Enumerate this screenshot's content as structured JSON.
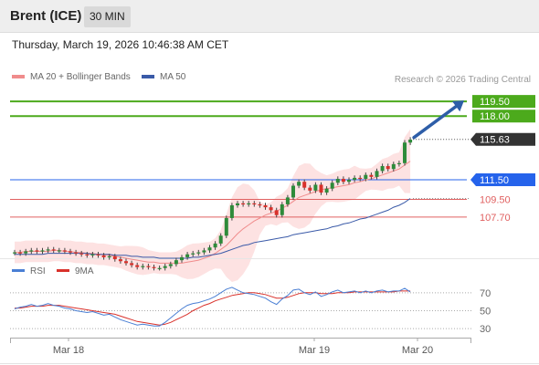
{
  "header": {
    "instrument": "Brent (ICE)",
    "timeframe": "30 MIN"
  },
  "timestamp": "Thursday, March 19, 2026 10:46:38 AM CET",
  "copyright": "Research © 2026 Trading Central",
  "colors": {
    "bullish": "#2e8b3a",
    "bearish": "#d9312b",
    "ma20": "#f08c8c",
    "band_fill": "#fde2e2",
    "ma50": "#3a5aa8",
    "target_green": "#4caa1c",
    "pivot_blue": "#2563eb",
    "support_red": "#e06060",
    "last_price_bg": "#333333",
    "arrow": "#2e5ea8",
    "rsi": "#4a7fd4",
    "rsi_ma": "#d9312b"
  },
  "chart_data": [
    {
      "type": "candlestick",
      "title": "",
      "legend": [
        {
          "name": "MA 20 + Bollinger Bands",
          "color": "#f08c8c"
        },
        {
          "name": "MA 50",
          "color": "#3a5aa8"
        }
      ],
      "x_tick_labels": [
        "Mar 18",
        "Mar 19",
        "Mar 20"
      ],
      "ylim": [
        103.5,
        121
      ],
      "last_price": "115.63",
      "levels": [
        {
          "label": "119.50",
          "value": 119.5,
          "kind": "target"
        },
        {
          "label": "118.00",
          "value": 118.0,
          "kind": "target"
        },
        {
          "label": "111.50",
          "value": 111.5,
          "kind": "pivot"
        },
        {
          "label": "109.50",
          "value": 109.5,
          "kind": "support"
        },
        {
          "label": "107.70",
          "value": 107.7,
          "kind": "support"
        }
      ],
      "close": [
        104.1,
        104.0,
        104.2,
        104.3,
        104.2,
        104.3,
        104.4,
        104.3,
        104.3,
        104.2,
        104.1,
        104.0,
        103.9,
        103.8,
        103.9,
        103.8,
        103.6,
        103.7,
        103.4,
        103.2,
        103.0,
        102.8,
        102.6,
        102.7,
        102.6,
        102.5,
        102.5,
        102.7,
        102.9,
        103.3,
        103.6,
        103.9,
        104.0,
        104.1,
        104.3,
        104.6,
        105.0,
        105.8,
        107.6,
        108.9,
        109.1,
        109.0,
        109.1,
        109.0,
        108.9,
        108.7,
        108.4,
        107.9,
        109.0,
        109.7,
        110.9,
        111.3,
        110.7,
        110.4,
        111.0,
        110.2,
        110.6,
        111.2,
        111.6,
        111.3,
        111.5,
        111.7,
        111.6,
        112.0,
        111.8,
        112.4,
        112.9,
        112.6,
        113.1,
        113.2,
        115.3,
        115.6
      ],
      "series": [
        {
          "name": "MA 20 + Bollinger Bands",
          "values": [
            104.1,
            104.1,
            104.2,
            104.2,
            104.2,
            104.2,
            104.2,
            104.3,
            104.3,
            104.2,
            104.2,
            104.1,
            104.1,
            104.0,
            104.0,
            103.9,
            103.9,
            103.8,
            103.7,
            103.6,
            103.5,
            103.4,
            103.3,
            103.2,
            103.1,
            103.1,
            103.0,
            103.0,
            103.0,
            103.0,
            103.0,
            103.1,
            103.2,
            103.3,
            103.5,
            103.7,
            104.0,
            104.4,
            104.8,
            105.4,
            106.0,
            106.5,
            106.9,
            107.3,
            107.6,
            107.9,
            108.1,
            108.3,
            108.6,
            108.9,
            109.3,
            109.7,
            109.9,
            110.1,
            110.3,
            110.5,
            110.6,
            110.7,
            110.8,
            110.9,
            111.0,
            111.2,
            111.3,
            111.5,
            111.6,
            111.8,
            112.0,
            112.2,
            112.4,
            112.6,
            113.0,
            113.4
          ]
        },
        {
          "name": "MA 50",
          "values": [
            103.9,
            103.9,
            103.9,
            103.9,
            103.9,
            103.9,
            104.0,
            104.0,
            104.0,
            104.0,
            104.0,
            104.0,
            104.0,
            104.0,
            103.9,
            103.9,
            103.9,
            103.9,
            103.8,
            103.8,
            103.8,
            103.7,
            103.7,
            103.6,
            103.6,
            103.6,
            103.5,
            103.5,
            103.5,
            103.5,
            103.5,
            103.5,
            103.6,
            103.6,
            103.7,
            103.8,
            103.9,
            104.0,
            104.2,
            104.4,
            104.6,
            104.8,
            104.9,
            105.1,
            105.2,
            105.3,
            105.4,
            105.5,
            105.6,
            105.7,
            105.9,
            106.0,
            106.1,
            106.2,
            106.3,
            106.4,
            106.5,
            106.7,
            106.8,
            107.0,
            107.1,
            107.3,
            107.5,
            107.6,
            107.8,
            108.0,
            108.2,
            108.4,
            108.7,
            108.9,
            109.2,
            109.6
          ]
        }
      ]
    },
    {
      "type": "line",
      "title": "",
      "legend": [
        {
          "name": "RSI",
          "color": "#4a7fd4"
        },
        {
          "name": "9MA",
          "color": "#d9312b"
        }
      ],
      "ylim": [
        20,
        80
      ],
      "y_ticks": [
        "70",
        "50",
        "30"
      ],
      "series": [
        {
          "name": "RSI",
          "values": [
            52,
            54,
            55,
            57,
            55,
            56,
            58,
            56,
            55,
            53,
            52,
            50,
            49,
            48,
            49,
            47,
            45,
            46,
            43,
            40,
            38,
            36,
            34,
            35,
            34,
            33,
            33,
            37,
            42,
            47,
            52,
            56,
            58,
            59,
            61,
            63,
            66,
            70,
            74,
            76,
            73,
            70,
            69,
            68,
            66,
            64,
            60,
            57,
            63,
            67,
            73,
            74,
            70,
            68,
            71,
            66,
            68,
            71,
            73,
            70,
            71,
            72,
            70,
            72,
            70,
            72,
            73,
            71,
            72,
            72,
            75,
            71
          ]
        },
        {
          "name": "9MA",
          "values": [
            53,
            53,
            54,
            55,
            55,
            55,
            56,
            56,
            56,
            55,
            54,
            53,
            52,
            51,
            50,
            49,
            48,
            47,
            46,
            44,
            42,
            40,
            38,
            37,
            36,
            35,
            34,
            35,
            37,
            40,
            43,
            46,
            50,
            53,
            56,
            58,
            61,
            63,
            65,
            67,
            68,
            69,
            70,
            70,
            69,
            68,
            66,
            64,
            64,
            65,
            67,
            69,
            70,
            70,
            70,
            69,
            69,
            69,
            70,
            70,
            70,
            71,
            71,
            71,
            71,
            71,
            71,
            71,
            71,
            72,
            72,
            72
          ]
        }
      ]
    }
  ]
}
